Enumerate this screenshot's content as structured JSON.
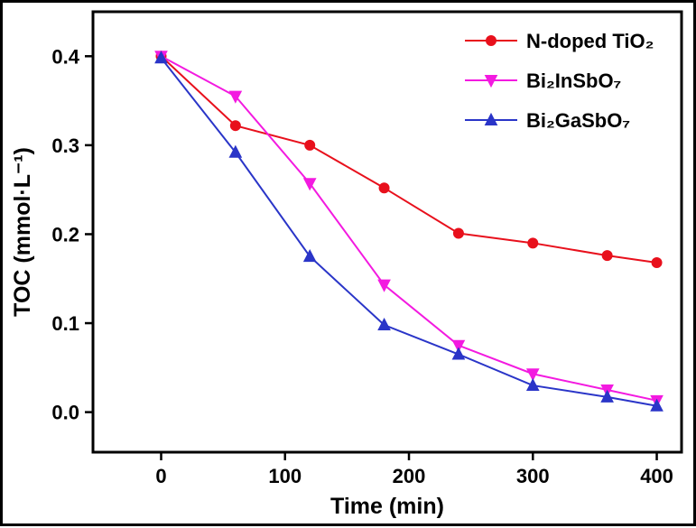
{
  "figure": {
    "background": "#ffffff",
    "border_color": "#000000",
    "axis_color": "#000000"
  },
  "chart_data": {
    "type": "line",
    "title": "",
    "xlabel": "Time (min)",
    "ylabel": "TOC (mmol·L⁻¹)",
    "xlim": [
      -55,
      420
    ],
    "ylim": [
      -0.045,
      0.45
    ],
    "xticks": [
      0,
      100,
      200,
      300,
      400
    ],
    "yticks": [
      0.0,
      0.1,
      0.2,
      0.3,
      0.4
    ],
    "grid": false,
    "legend_position": "top-right",
    "x": [
      0,
      60,
      120,
      180,
      240,
      300,
      360,
      400
    ],
    "series": [
      {
        "name": "N-doped TiO₂",
        "color": "#e8101c",
        "marker": "circle",
        "values": [
          0.4,
          0.322,
          0.3,
          0.252,
          0.201,
          0.19,
          0.176,
          0.168
        ]
      },
      {
        "name": "Bi₂InSbO₇",
        "color": "#f31ae0",
        "marker": "triangle-down",
        "values": [
          0.4,
          0.355,
          0.257,
          0.143,
          0.075,
          0.043,
          0.025,
          0.013
        ]
      },
      {
        "name": "Bi₂GaSbO₇",
        "color": "#2a35c8",
        "marker": "triangle-up",
        "values": [
          0.398,
          0.292,
          0.175,
          0.098,
          0.065,
          0.03,
          0.017,
          0.007
        ]
      }
    ]
  }
}
